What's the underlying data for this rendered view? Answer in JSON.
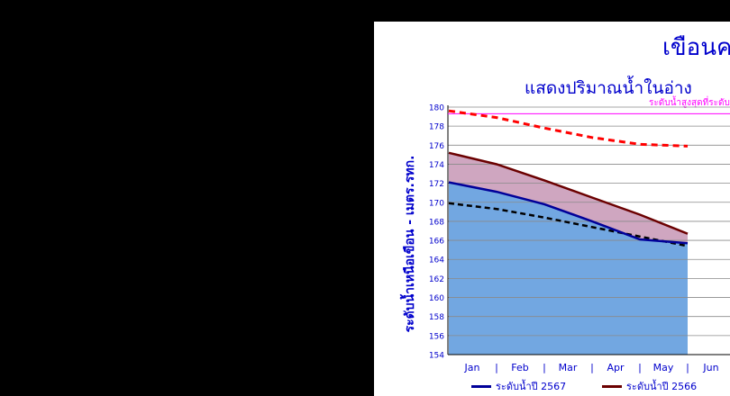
{
  "chart_data": {
    "type": "area",
    "title": "เขือนค",
    "subtitle": "แสดงปริมาณน้ำในอ่าง",
    "ylabel": "ระดับน้ำเหนือเขือน - เมตร.รทก.",
    "ylim": [
      154,
      180
    ],
    "yticks": [
      "180",
      "178",
      "176",
      "174",
      "172",
      "170",
      "168",
      "166",
      "164",
      "162",
      "160",
      "158",
      "156",
      "154"
    ],
    "categories": [
      "Jan",
      "Feb",
      "Mar",
      "Apr",
      "May",
      "Jun"
    ],
    "grid": true,
    "reference_line": {
      "label": "ระดับน้ำสูงสุดที่ระดับ",
      "value": 179.3,
      "color": "#ff00ff"
    },
    "series": [
      {
        "name": "ระดับน้ำปี 2567",
        "color": "#000099",
        "style": "solid-area",
        "fill": "#72a7e1",
        "values": [
          172.1,
          171.1,
          169.8,
          168.0,
          166.1,
          165.7
        ]
      },
      {
        "name": "ระดับน้ำปี 2566",
        "color": "#6b0000",
        "style": "solid-area",
        "fill": "#cfa6c0",
        "values": [
          175.2,
          174.0,
          172.3,
          170.5,
          168.7,
          166.7
        ]
      },
      {
        "name": "",
        "color": "#000000",
        "style": "dashed",
        "values": [
          169.9,
          169.3,
          168.4,
          167.4,
          166.4,
          165.4
        ]
      },
      {
        "name": "",
        "color": "#ff0000",
        "style": "dashed",
        "values": [
          179.6,
          178.9,
          177.8,
          176.8,
          176.1,
          175.9
        ]
      }
    ],
    "legend": "bottom"
  }
}
